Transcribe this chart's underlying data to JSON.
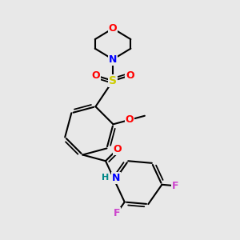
{
  "background_color": "#e8e8e8",
  "bond_color": "#000000",
  "atom_colors": {
    "O": "#ff0000",
    "N": "#0000ff",
    "S": "#cccc00",
    "F": "#cc44cc",
    "H": "#008888",
    "C": "#000000"
  },
  "lw": 1.5
}
